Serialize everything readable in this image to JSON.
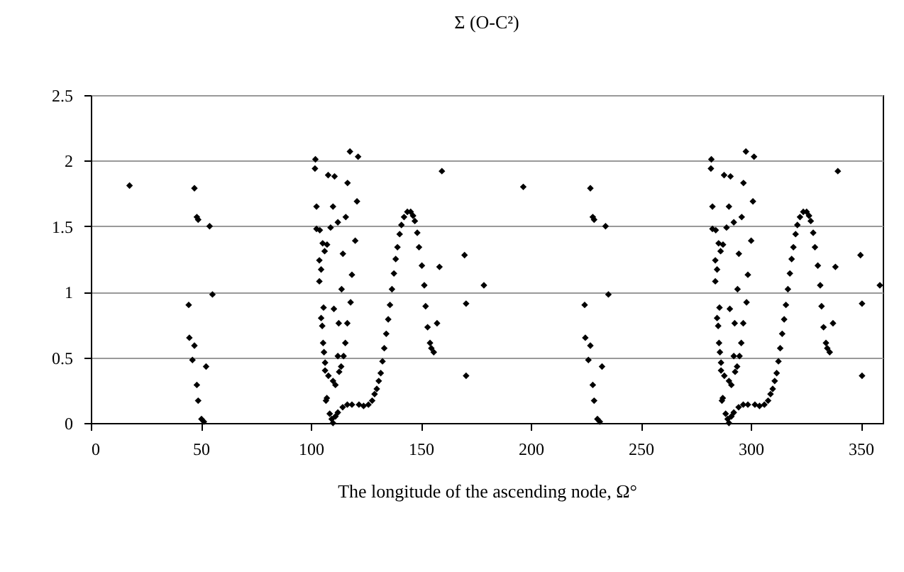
{
  "chart_data": {
    "type": "scatter",
    "title": "Σ (O-C²)",
    "xlabel": "The longitude of the ascending node, Ω°",
    "xlim": [
      0,
      360
    ],
    "xticks": [
      0,
      50,
      100,
      150,
      200,
      250,
      300,
      350
    ],
    "ylim": [
      0,
      2.5
    ],
    "yticks": [
      0,
      0.5,
      1,
      1.5,
      2,
      2.5
    ],
    "grid": "y",
    "marker": "diamond",
    "series": [
      {
        "color": "#000000",
        "x": [
          17.6,
          47.1,
          48.2,
          48.8,
          54.0,
          55.3,
          44.5,
          44.8,
          47.1,
          46.2,
          52.4,
          48.2,
          48.8,
          50.3,
          51.4,
          102.1,
          101.9,
          107.9,
          110.8,
          117.8,
          121.5,
          116.7,
          121.0,
          102.6,
          110.1,
          115.9,
          112.3,
          109.0,
          102.6,
          104.1,
          120.2,
          105.4,
          107.4,
          106.3,
          114.6,
          103.9,
          104.7,
          118.7,
          103.9,
          114.0,
          118.1,
          105.8,
          110.5,
          104.7,
          105.2,
          112.7,
          116.6,
          115.7,
          105.6,
          106.0,
          112.3,
          114.9,
          106.5,
          113.8,
          106.5,
          108.0,
          112.9,
          110.1,
          111.2,
          107.3,
          106.9,
          108.6,
          109.5,
          110.1,
          111.2,
          112.3,
          114.5,
          116.6,
          118.7,
          121.9,
          124.0,
          126.2,
          127.9,
          129.0,
          130.0,
          130.9,
          131.8,
          132.6,
          133.4,
          134.3,
          135.2,
          136.0,
          136.9,
          137.8,
          138.6,
          139.4,
          140.4,
          141.2,
          142.4,
          143.9,
          145.4,
          146.5,
          147.3,
          148.4,
          149.2,
          150.5,
          151.6,
          152.2,
          153.1,
          154.2,
          154.8,
          155.9,
          159.6,
          158.5,
          157.4,
          169.9,
          170.6,
          170.6,
          178.7,
          196.6,
          227.1,
          228.2,
          228.8,
          234.0,
          235.3,
          224.5,
          224.8,
          227.1,
          226.2,
          232.4,
          228.2,
          228.8,
          230.3,
          231.4,
          282.1,
          281.9,
          287.9,
          290.8,
          297.8,
          301.5,
          296.7,
          301.0,
          282.6,
          290.1,
          295.9,
          292.3,
          289.0,
          282.6,
          284.1,
          300.2,
          285.4,
          287.4,
          286.3,
          294.6,
          283.9,
          284.7,
          298.7,
          283.9,
          294.0,
          298.1,
          285.8,
          290.5,
          284.7,
          285.2,
          292.7,
          296.6,
          295.7,
          285.6,
          286.0,
          292.3,
          294.9,
          286.5,
          293.8,
          286.5,
          288.0,
          292.9,
          290.1,
          291.2,
          287.3,
          286.9,
          288.6,
          289.5,
          290.1,
          291.2,
          292.3,
          294.5,
          296.6,
          298.7,
          301.9,
          304.0,
          306.2,
          307.9,
          309.0,
          310.0,
          310.9,
          311.8,
          312.6,
          313.4,
          314.3,
          315.2,
          316.0,
          316.9,
          317.8,
          318.6,
          319.4,
          320.4,
          321.2,
          322.4,
          323.9,
          325.4,
          326.5,
          327.3,
          328.4,
          329.2,
          330.5,
          331.6,
          332.2,
          333.1,
          334.2,
          334.8,
          335.9,
          339.6,
          338.5,
          337.4,
          349.9,
          350.6,
          350.6,
          358.7
        ],
        "values": [
          1.81,
          1.79,
          1.57,
          1.55,
          1.5,
          0.98,
          0.9,
          0.65,
          0.59,
          0.48,
          0.43,
          0.29,
          0.17,
          0.03,
          0.01,
          2.01,
          1.94,
          1.89,
          1.88,
          2.07,
          2.03,
          1.83,
          1.69,
          1.65,
          1.65,
          1.57,
          1.53,
          1.49,
          1.48,
          1.47,
          1.39,
          1.37,
          1.36,
          1.31,
          1.29,
          1.24,
          1.17,
          1.13,
          1.08,
          1.02,
          0.92,
          0.88,
          0.87,
          0.8,
          0.74,
          0.76,
          0.76,
          0.61,
          0.61,
          0.54,
          0.51,
          0.51,
          0.46,
          0.43,
          0.4,
          0.36,
          0.39,
          0.32,
          0.29,
          0.19,
          0.17,
          0.07,
          0.03,
          0.0,
          0.05,
          0.08,
          0.12,
          0.14,
          0.14,
          0.14,
          0.13,
          0.14,
          0.17,
          0.22,
          0.26,
          0.32,
          0.38,
          0.47,
          0.57,
          0.68,
          0.79,
          0.9,
          1.02,
          1.14,
          1.25,
          1.34,
          1.44,
          1.51,
          1.57,
          1.61,
          1.61,
          1.58,
          1.54,
          1.45,
          1.34,
          1.2,
          1.05,
          0.89,
          0.73,
          0.61,
          0.57,
          0.54,
          1.92,
          1.19,
          0.76,
          1.28,
          0.91,
          0.36,
          1.05,
          1.8,
          1.79,
          1.57,
          1.55,
          1.5,
          0.98,
          0.9,
          0.65,
          0.59,
          0.48,
          0.43,
          0.29,
          0.17,
          0.03,
          0.01,
          2.01,
          1.94,
          1.89,
          1.88,
          2.07,
          2.03,
          1.83,
          1.69,
          1.65,
          1.65,
          1.57,
          1.53,
          1.49,
          1.48,
          1.47,
          1.39,
          1.37,
          1.36,
          1.31,
          1.29,
          1.24,
          1.17,
          1.13,
          1.08,
          1.02,
          0.92,
          0.88,
          0.87,
          0.8,
          0.74,
          0.76,
          0.76,
          0.61,
          0.61,
          0.54,
          0.51,
          0.51,
          0.46,
          0.43,
          0.4,
          0.36,
          0.39,
          0.32,
          0.29,
          0.19,
          0.17,
          0.07,
          0.03,
          0.0,
          0.05,
          0.08,
          0.12,
          0.14,
          0.14,
          0.14,
          0.13,
          0.14,
          0.17,
          0.22,
          0.26,
          0.32,
          0.38,
          0.47,
          0.57,
          0.68,
          0.79,
          0.9,
          1.02,
          1.14,
          1.25,
          1.34,
          1.44,
          1.51,
          1.57,
          1.61,
          1.61,
          1.58,
          1.54,
          1.45,
          1.34,
          1.2,
          1.05,
          0.89,
          0.73,
          0.61,
          0.57,
          0.54,
          1.92,
          1.19,
          0.76,
          1.28,
          0.91,
          0.36,
          1.05
        ]
      }
    ]
  }
}
